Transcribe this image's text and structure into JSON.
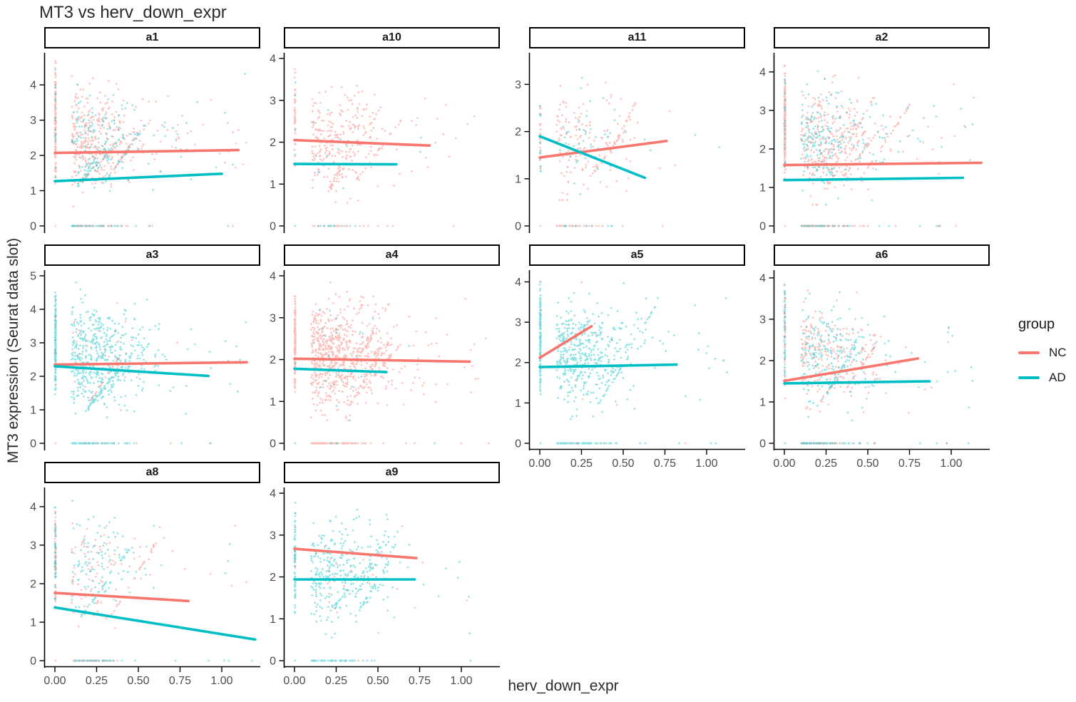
{
  "title": "MT3 vs herv_down_expr",
  "axes": {
    "x_label": "herv_down_expr",
    "y_label": "MT3 expression (Seurat data slot)",
    "x_ticks": [
      "0.00",
      "0.25",
      "0.50",
      "0.75",
      "1.00"
    ],
    "x_tick_values": [
      0,
      0.25,
      0.5,
      0.75,
      1.0
    ],
    "xlim": [
      0,
      1.2
    ]
  },
  "legend": {
    "title": "group",
    "items": [
      {
        "label": "NC",
        "color": "#F8766D"
      },
      {
        "label": "AD",
        "color": "#00BFC4"
      }
    ]
  },
  "colors": {
    "nc": "#F8766D",
    "ad": "#00BFC4",
    "axis_text": "#4d4d4d",
    "axis_line": "#000000",
    "strip_border": "#000000",
    "strip_bg": "#ffffff"
  },
  "chart_data": {
    "type": "scatter",
    "facet_variable": "sample",
    "groups": [
      "NC",
      "AD"
    ],
    "facets": [
      {
        "label": "a1",
        "row": 0,
        "col": 0,
        "ylim": [
          0,
          4.75
        ],
        "yticks": [
          0,
          1,
          2,
          3,
          4
        ],
        "x_axis": false,
        "trend_nc": {
          "x1": 0,
          "y1": 2.07,
          "x2": 1.1,
          "y2": 2.15
        },
        "trend_ad": {
          "x1": 0,
          "y1": 1.27,
          "x2": 1.0,
          "y2": 1.48
        },
        "scatter": {
          "seed": 11,
          "n_cloud": 640,
          "frac_nc": 0.72,
          "cy": 2.45,
          "sy": 0.62,
          "n_strip": 140,
          "strip_y": [
            1.1,
            4.7
          ],
          "strip_frac_nc": 0.9,
          "n_zero": 90,
          "zero_frac_nc": 0.55
        }
      },
      {
        "label": "a10",
        "row": 0,
        "col": 1,
        "ylim": [
          0,
          4.0
        ],
        "yticks": [
          0,
          1,
          2,
          3,
          4
        ],
        "x_axis": false,
        "trend_nc": {
          "x1": 0,
          "y1": 2.05,
          "x2": 0.81,
          "y2": 1.92
        },
        "trend_ad": {
          "x1": 0,
          "y1": 1.48,
          "x2": 0.61,
          "y2": 1.47
        },
        "scatter": {
          "seed": 12,
          "n_cloud": 340,
          "frac_nc": 0.96,
          "cy": 2.05,
          "sy": 0.56,
          "n_strip": 40,
          "strip_y": [
            1.2,
            3.95
          ],
          "strip_frac_nc": 0.85,
          "n_zero": 38,
          "zero_frac_nc": 0.75
        }
      },
      {
        "label": "a11",
        "row": 0,
        "col": 2,
        "ylim": [
          0,
          3.55
        ],
        "yticks": [
          0,
          1,
          2,
          3
        ],
        "x_axis": false,
        "trend_nc": {
          "x1": 0,
          "y1": 1.45,
          "x2": 0.76,
          "y2": 1.8
        },
        "trend_ad": {
          "x1": 0,
          "y1": 1.9,
          "x2": 0.63,
          "y2": 1.02
        },
        "scatter": {
          "seed": 13,
          "n_cloud": 235,
          "frac_nc": 0.78,
          "cy": 1.8,
          "sy": 0.55,
          "n_strip": 38,
          "strip_y": [
            1.0,
            2.75
          ],
          "strip_frac_nc": 0.72,
          "n_zero": 48,
          "zero_frac_nc": 0.8
        }
      },
      {
        "label": "a2",
        "row": 0,
        "col": 3,
        "ylim": [
          0,
          4.35
        ],
        "yticks": [
          0,
          1,
          2,
          3,
          4
        ],
        "x_axis": false,
        "trend_nc": {
          "x1": 0,
          "y1": 1.58,
          "x2": 1.18,
          "y2": 1.64
        },
        "trend_ad": {
          "x1": 0,
          "y1": 1.19,
          "x2": 1.07,
          "y2": 1.25
        },
        "scatter": {
          "seed": 14,
          "n_cloud": 620,
          "frac_nc": 0.58,
          "cy": 2.25,
          "sy": 0.66,
          "n_strip": 240,
          "strip_y": [
            1.15,
            4.2
          ],
          "strip_frac_nc": 0.93,
          "n_zero": 135,
          "zero_frac_nc": 0.7
        }
      },
      {
        "label": "a3",
        "row": 1,
        "col": 0,
        "ylim": [
          0,
          5.0
        ],
        "yticks": [
          0,
          1,
          2,
          3,
          4,
          5
        ],
        "x_axis": false,
        "trend_nc": {
          "x1": 0,
          "y1": 2.35,
          "x2": 1.15,
          "y2": 2.42
        },
        "trend_ad": {
          "x1": 0,
          "y1": 2.3,
          "x2": 0.92,
          "y2": 2.01
        },
        "scatter": {
          "seed": 15,
          "n_cloud": 640,
          "frac_nc": 0.06,
          "cy": 2.65,
          "sy": 0.72,
          "n_strip": 180,
          "strip_y": [
            1.3,
            4.75
          ],
          "strip_frac_nc": 0.1,
          "n_zero": 95,
          "zero_frac_nc": 0.08
        }
      },
      {
        "label": "a4",
        "row": 1,
        "col": 1,
        "ylim": [
          0,
          4.0
        ],
        "yticks": [
          0,
          1,
          2,
          3,
          4
        ],
        "x_axis": false,
        "trend_nc": {
          "x1": 0,
          "y1": 2.02,
          "x2": 1.05,
          "y2": 1.95
        },
        "trend_ad": {
          "x1": 0,
          "y1": 1.78,
          "x2": 0.55,
          "y2": 1.7
        },
        "scatter": {
          "seed": 16,
          "n_cloud": 800,
          "frac_nc": 0.97,
          "cy": 2.1,
          "sy": 0.6,
          "n_strip": 130,
          "strip_y": [
            0.95,
            3.9
          ],
          "strip_frac_nc": 0.98,
          "n_zero": 115,
          "zero_frac_nc": 0.97
        }
      },
      {
        "label": "a5",
        "row": 1,
        "col": 2,
        "ylim": [
          0,
          4.15
        ],
        "yticks": [
          0,
          1,
          2,
          3,
          4
        ],
        "x_axis": true,
        "trend_nc": {
          "x1": 0,
          "y1": 2.12,
          "x2": 0.31,
          "y2": 2.9
        },
        "trend_ad": {
          "x1": 0,
          "y1": 1.89,
          "x2": 0.82,
          "y2": 1.95
        },
        "scatter": {
          "seed": 17,
          "n_cloud": 530,
          "frac_nc": 0.02,
          "cy": 2.25,
          "sy": 0.64,
          "n_strip": 160,
          "strip_y": [
            1.05,
            4.1
          ],
          "strip_frac_nc": 0.05,
          "n_zero": 95,
          "zero_frac_nc": 0.03
        }
      },
      {
        "label": "a6",
        "row": 1,
        "col": 3,
        "ylim": [
          0,
          4.05
        ],
        "yticks": [
          0,
          1,
          2,
          3,
          4
        ],
        "x_axis": true,
        "trend_nc": {
          "x1": 0,
          "y1": 1.51,
          "x2": 0.8,
          "y2": 2.05
        },
        "trend_ad": {
          "x1": 0,
          "y1": 1.45,
          "x2": 0.87,
          "y2": 1.5
        },
        "scatter": {
          "seed": 18,
          "n_cloud": 530,
          "frac_nc": 0.5,
          "cy": 2.05,
          "sy": 0.58,
          "n_strip": 100,
          "strip_y": [
            1.05,
            4.0
          ],
          "strip_frac_nc": 0.5,
          "n_zero": 120,
          "zero_frac_nc": 0.5
        }
      },
      {
        "label": "a8",
        "row": 2,
        "col": 0,
        "ylim": [
          0,
          4.35
        ],
        "yticks": [
          0,
          1,
          2,
          3,
          4
        ],
        "x_axis": true,
        "trend_nc": {
          "x1": 0,
          "y1": 1.76,
          "x2": 0.8,
          "y2": 1.55
        },
        "trend_ad": {
          "x1": 0,
          "y1": 1.38,
          "x2": 1.2,
          "y2": 0.55
        },
        "scatter": {
          "seed": 19,
          "n_cloud": 255,
          "frac_nc": 0.5,
          "cy": 2.5,
          "sy": 0.68,
          "n_strip": 115,
          "strip_y": [
            1.2,
            4.1
          ],
          "strip_frac_nc": 0.55,
          "n_zero": 85,
          "zero_frac_nc": 0.5
        }
      },
      {
        "label": "a9",
        "row": 2,
        "col": 1,
        "ylim": [
          0,
          4.0
        ],
        "yticks": [
          0,
          1,
          2,
          3,
          4
        ],
        "x_axis": true,
        "trend_nc": {
          "x1": 0,
          "y1": 2.67,
          "x2": 0.73,
          "y2": 2.45
        },
        "trend_ad": {
          "x1": 0,
          "y1": 1.94,
          "x2": 0.72,
          "y2": 1.94
        },
        "scatter": {
          "seed": 20,
          "n_cloud": 410,
          "frac_nc": 0.06,
          "cy": 2.15,
          "sy": 0.58,
          "n_strip": 75,
          "strip_y": [
            1.1,
            3.85
          ],
          "strip_frac_nc": 0.15,
          "n_zero": 55,
          "zero_frac_nc": 0.05
        }
      }
    ]
  }
}
